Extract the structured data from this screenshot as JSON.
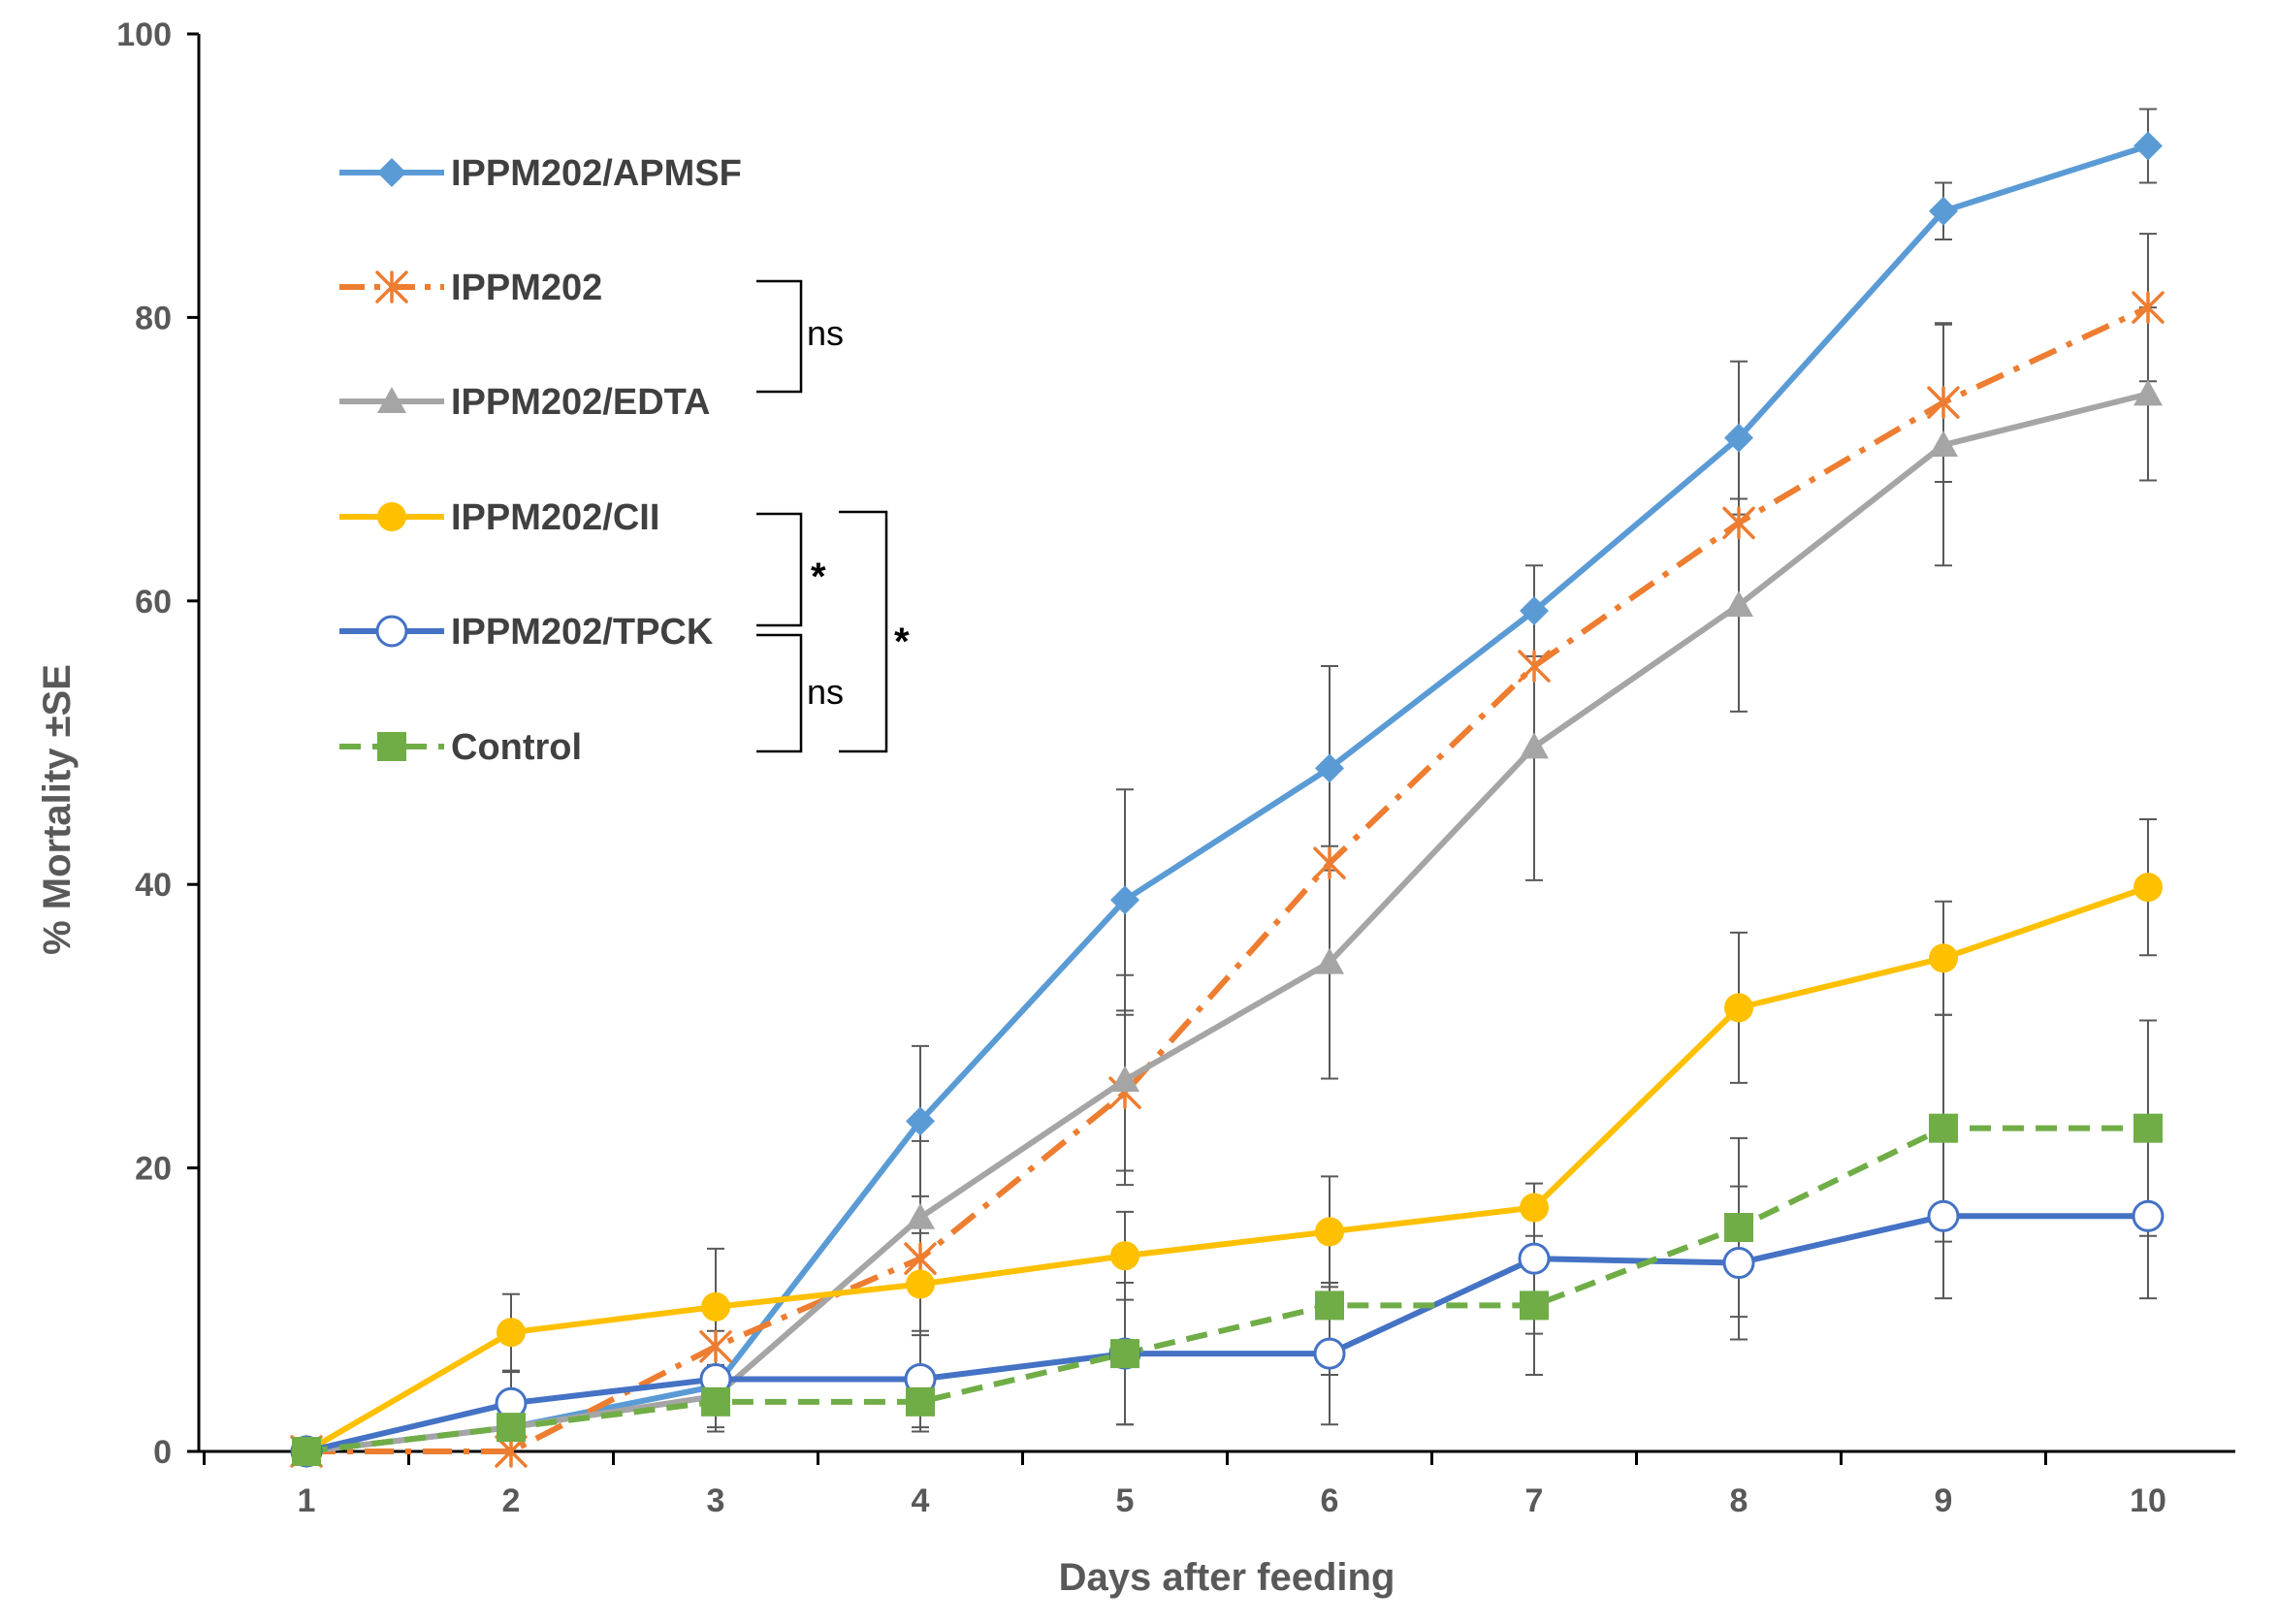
{
  "chart_data": {
    "type": "line",
    "xlabel": "Days after feeding",
    "ylabel": "% Mortality ±SE",
    "x": [
      1,
      2,
      3,
      4,
      5,
      6,
      7,
      8,
      9,
      10
    ],
    "xlim": [
      1,
      10
    ],
    "ylim": [
      0,
      100
    ],
    "yticks": [
      0,
      20,
      40,
      60,
      80,
      100
    ],
    "grid": false,
    "legend": "top-left",
    "series": [
      {
        "name": "IPPM202/APMSF",
        "color": "#5B9BD5",
        "marker": "diamond",
        "dash": "solid",
        "values": [
          0,
          1.7,
          4.6,
          23.3,
          38.9,
          48.2,
          59.3,
          71.5,
          87.5,
          92.1
        ],
        "errors": [
          0,
          0,
          0,
          5.3,
          7.8,
          7.2,
          3.2,
          5.4,
          2.0,
          2.6
        ]
      },
      {
        "name": "IPPM202",
        "color": "#ED7D31",
        "marker": "asterisk",
        "dash": "dashdot",
        "values": [
          0,
          0,
          7.4,
          13.6,
          25.3,
          41.5,
          55.4,
          65.5,
          74.0,
          80.7
        ],
        "errors": [
          0,
          0,
          0,
          0,
          5.5,
          0,
          0,
          0,
          5.6,
          5.2
        ]
      },
      {
        "name": "IPPM202/EDTA",
        "color": "#A5A5A5",
        "marker": "triangle",
        "dash": "solid",
        "values": [
          0,
          1.7,
          3.9,
          16.5,
          26.2,
          34.5,
          49.7,
          59.7,
          71.0,
          74.6
        ],
        "errors": [
          0,
          0,
          0,
          5.4,
          7.4,
          8.2,
          9.4,
          7.5,
          8.5,
          6.1
        ]
      },
      {
        "name": "IPPM202/CII",
        "color": "#FFC000",
        "marker": "circle",
        "dash": "solid",
        "values": [
          0,
          8.4,
          10.2,
          11.8,
          13.8,
          15.5,
          17.2,
          31.3,
          34.8,
          39.8
        ],
        "errors": [
          0,
          2.7,
          4.1,
          3.6,
          3.1,
          3.9,
          0,
          5.3,
          4.0,
          4.8
        ]
      },
      {
        "name": "IPPM202/TPCK",
        "color": "#4472C4",
        "marker": "open-circle",
        "dash": "solid",
        "values": [
          0,
          3.4,
          5.1,
          5.1,
          6.9,
          6.9,
          13.6,
          13.3,
          16.6,
          16.6
        ],
        "errors": [
          0,
          2.2,
          3.4,
          3.4,
          5.0,
          5.0,
          5.3,
          5.4,
          5.8,
          5.8
        ]
      },
      {
        "name": "Control",
        "color": "#70AD47",
        "marker": "square",
        "dash": "dashed",
        "values": [
          0,
          1.7,
          3.5,
          3.5,
          6.9,
          10.3,
          10.3,
          15.8,
          22.8,
          22.8
        ],
        "errors": [
          0,
          0,
          2.1,
          2.1,
          5.0,
          4.9,
          4.9,
          6.3,
          8.0,
          7.6
        ]
      }
    ],
    "annotations": {
      "ns_top": "ns",
      "star_inner": "*",
      "star_outer": "*",
      "ns_bottom": "ns"
    }
  }
}
